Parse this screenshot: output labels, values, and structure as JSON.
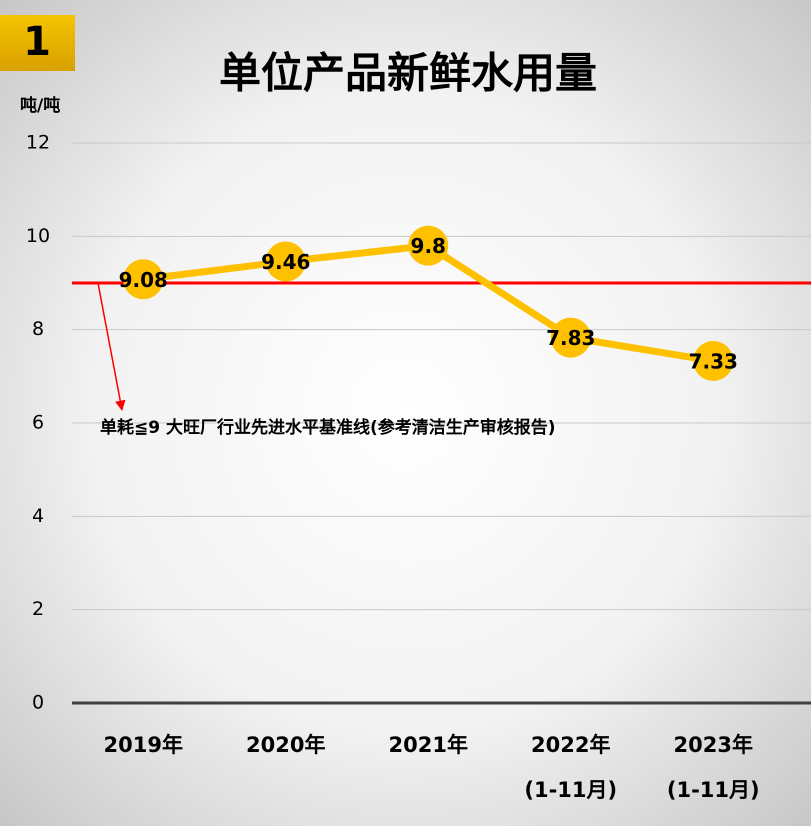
{
  "chart_data": {
    "type": "line",
    "badge": "1",
    "title": "单位产品新鲜水用量",
    "y_label": "吨/吨",
    "categories": [
      [
        "2019年"
      ],
      [
        "2020年"
      ],
      [
        "2021年"
      ],
      [
        "2022年",
        "(1-11月)"
      ],
      [
        "2023年",
        "(1-11月)"
      ]
    ],
    "series": [
      {
        "color": "#FFC000",
        "values": [
          9.08,
          9.46,
          9.8,
          7.83,
          7.33
        ]
      }
    ],
    "ylim": [
      0,
      12
    ],
    "yticks": [
      0,
      2,
      4,
      6,
      8,
      10,
      12
    ],
    "grid": true,
    "reference_line": {
      "value": 9,
      "color": "#FF0000",
      "label": "单耗≦9 大旺厂行业先进水平基准线(参考清洁生产审核报告)"
    }
  }
}
